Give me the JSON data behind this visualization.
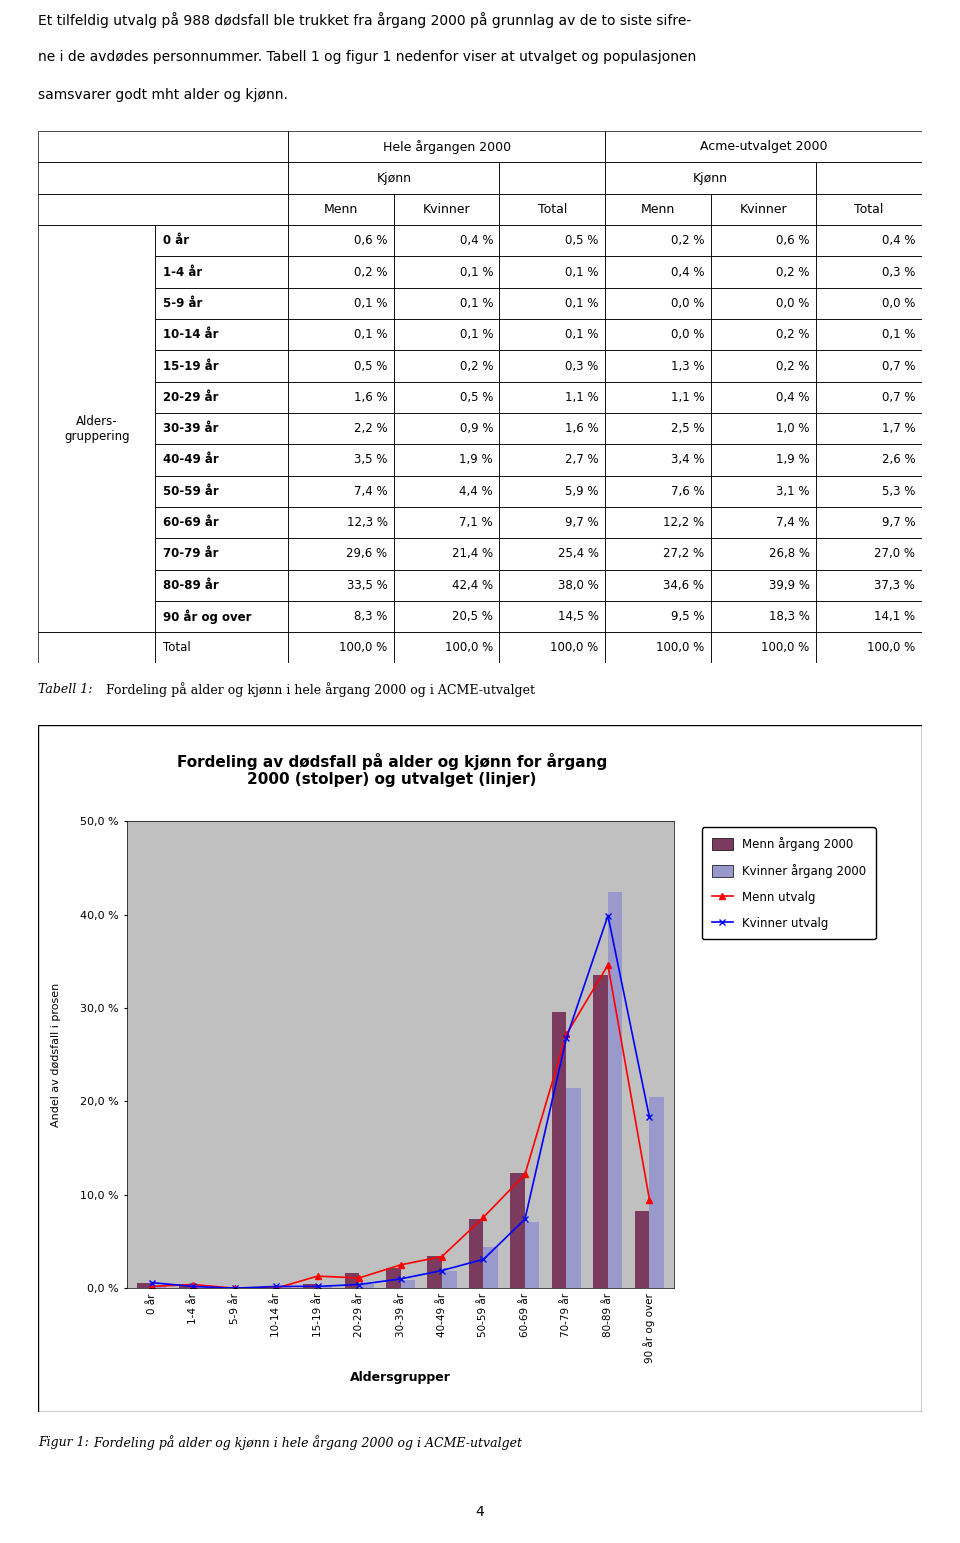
{
  "intro_text_lines": [
    "Et tilfeldig utvalg på 988 dødsfall ble trukket fra årgang 2000 på grunnlag av de to siste sifre-",
    "ne i de avdødes personnummer. Tabell 1 og figur 1 nedenfor viser at utvalget og populasjonen",
    "samsvarer godt mht alder og kjønn."
  ],
  "table_caption_italic": "Tabell 1:",
  "table_caption_normal": " Fordeling på alder og kjønn i hele årgang 2000 og i ACME-utvalget",
  "fig_caption_italic": "Figur 1:",
  "fig_caption_normal": " Fordeling på alder og kjønn i hele årgang 2000 og i ACME-utvalget",
  "chart_title_line1": "Fordeling av dødsfall på alder og kjønn for årgang",
  "chart_title_line2": "2000 (stolper) og utvalget (linjer)",
  "ylabel_chart": "Andel av dødsfall i prosen",
  "xlabel_chart": "Aldersgrupper",
  "age_groups": [
    "0 år",
    "1-4 år",
    "5-9 år",
    "10-14 år",
    "15-19 år",
    "20-29 år",
    "30-39 år",
    "40-49 år",
    "50-59 år",
    "60-69 år",
    "70-79 år",
    "80-89 år",
    "90 år og over"
  ],
  "hele_menn": [
    0.6,
    0.2,
    0.1,
    0.1,
    0.5,
    1.6,
    2.2,
    3.5,
    7.4,
    12.3,
    29.6,
    33.5,
    8.3
  ],
  "hele_kvinner": [
    0.4,
    0.1,
    0.1,
    0.1,
    0.2,
    0.5,
    0.9,
    1.9,
    4.4,
    7.1,
    21.4,
    42.4,
    20.5
  ],
  "hele_total": [
    0.5,
    0.1,
    0.1,
    0.1,
    0.3,
    1.1,
    1.6,
    2.7,
    5.9,
    9.7,
    25.4,
    38.0,
    14.5
  ],
  "acme_menn": [
    0.2,
    0.4,
    0.0,
    0.0,
    1.3,
    1.1,
    2.5,
    3.4,
    7.6,
    12.2,
    27.2,
    34.6,
    9.5
  ],
  "acme_kvinner": [
    0.6,
    0.2,
    0.0,
    0.2,
    0.2,
    0.4,
    1.0,
    1.9,
    3.1,
    7.4,
    26.8,
    39.9,
    18.3
  ],
  "acme_total": [
    0.4,
    0.3,
    0.0,
    0.1,
    0.7,
    0.7,
    1.7,
    2.6,
    5.3,
    9.7,
    27.0,
    37.3,
    14.1
  ],
  "bar_color_menn": "#7B3B5E",
  "bar_color_kvinner": "#9999CC",
  "line_color_menn": "#FF0000",
  "line_color_kvinner": "#0000FF",
  "chart_bg": "#C0C0C0",
  "legend_menn_bar": "Menn årgang 2000",
  "legend_kvinner_bar": "Kvinner årgang 2000",
  "legend_menn_line": "Menn utvalg",
  "legend_kvinner_line": "Kvinner utvalg",
  "yticks": [
    0.0,
    10.0,
    20.0,
    30.0,
    40.0,
    50.0
  ],
  "ytick_labels": [
    "0,0 %",
    "10,0 %",
    "20,0 %",
    "30,0 %",
    "40,0 %",
    "50,0 %"
  ],
  "page_number": "4"
}
